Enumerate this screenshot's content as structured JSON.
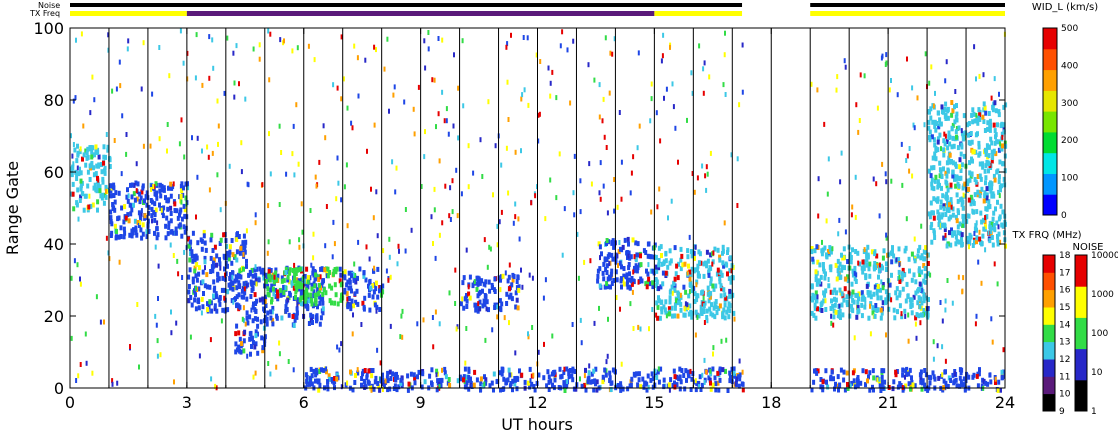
{
  "chart_data": {
    "type": "heatmap",
    "xlabel": "UT hours",
    "ylabel": "Range Gate",
    "xlim": [
      0,
      24
    ],
    "ylim": [
      0,
      100
    ],
    "x_ticks": [
      "0",
      "3",
      "6",
      "9",
      "12",
      "15",
      "18",
      "21",
      "24"
    ],
    "y_ticks": [
      "0",
      "20",
      "40",
      "60",
      "80",
      "100"
    ],
    "top_bars": {
      "noise_label": "Noise",
      "txfreq_label": "TX Freq",
      "noise_segments": [
        {
          "start": 0,
          "end": 17.25,
          "color": "#000000"
        },
        {
          "start": 19.0,
          "end": 24.0,
          "color": "#000000"
        }
      ],
      "txfreq_segments": [
        {
          "start": 0,
          "end": 3.0,
          "color": "#ffff00"
        },
        {
          "start": 3.0,
          "end": 15.0,
          "color": "#5a1a7a"
        },
        {
          "start": 15.0,
          "end": 17.25,
          "color": "#ffff00"
        },
        {
          "start": 19.0,
          "end": 24.0,
          "color": "#ffff00"
        }
      ]
    },
    "scan_lines_ut": [
      1.0,
      2.0,
      3.0,
      4.0,
      5.0,
      6.0,
      7.0,
      8.0,
      9.0,
      10.0,
      11.0,
      12.0,
      13.0,
      14.0,
      15.0,
      16.0,
      17.0,
      18.0,
      19.0,
      20.0,
      21.0,
      22.0,
      23.0
    ],
    "data_gaps_ut": [
      [
        17.25,
        19.0
      ]
    ],
    "scatter_regions": [
      {
        "x0": 0.0,
        "x1": 1.0,
        "y0": 50,
        "y1": 68,
        "color": "#3cc8e6"
      },
      {
        "x0": 1.0,
        "x1": 3.0,
        "y0": 42,
        "y1": 58,
        "color": "#1e46e6"
      },
      {
        "x0": 3.0,
        "x1": 4.5,
        "y0": 22,
        "y1": 44,
        "color": "#1e46e6"
      },
      {
        "x0": 4.2,
        "x1": 5.0,
        "y0": 10,
        "y1": 18,
        "color": "#1e46e6"
      },
      {
        "x0": 4.5,
        "x1": 6.5,
        "y0": 18,
        "y1": 34,
        "color": "#1e46e6"
      },
      {
        "x0": 5.0,
        "x1": 7.0,
        "y0": 24,
        "y1": 34,
        "color": "#32dc46"
      },
      {
        "x0": 7.0,
        "x1": 8.0,
        "y0": 22,
        "y1": 34,
        "color": "#1e46e6"
      },
      {
        "x0": 10.0,
        "x1": 11.5,
        "y0": 22,
        "y1": 32,
        "color": "#1e46e6"
      },
      {
        "x0": 13.5,
        "x1": 15.0,
        "y0": 28,
        "y1": 42,
        "color": "#1e46e6"
      },
      {
        "x0": 15.0,
        "x1": 17.0,
        "y0": 20,
        "y1": 40,
        "color": "#3cc8e6"
      },
      {
        "x0": 19.0,
        "x1": 22.0,
        "y0": 20,
        "y1": 40,
        "color": "#3cc8e6"
      },
      {
        "x0": 22.0,
        "x1": 24.0,
        "y0": 40,
        "y1": 80,
        "color": "#3cc8e6"
      },
      {
        "x0": 6.0,
        "x1": 17.25,
        "y0": 0,
        "y1": 6,
        "color": "#1e46e6"
      },
      {
        "x0": 19.0,
        "x1": 24.0,
        "y0": 0,
        "y1": 6,
        "color": "#1e46e6"
      }
    ],
    "colorbar_velocity_width": {
      "title": "WID_L (km/s)",
      "min": 0,
      "max": 500,
      "ticks": [
        "0",
        "100",
        "200",
        "300",
        "400",
        "500"
      ],
      "colors": [
        "#0000ff",
        "#0096ff",
        "#00e6e6",
        "#00dc32",
        "#78e600",
        "#e6e600",
        "#ffa000",
        "#ff5000",
        "#e60000"
      ]
    },
    "colorbar_txfreq": {
      "title": "TX FRQ (MHz)",
      "ticks": [
        "9",
        "10",
        "11",
        "12",
        "13",
        "14",
        "15",
        "16",
        "17",
        "18"
      ],
      "colors": [
        "#000000",
        "#5a1a7a",
        "#2828c8",
        "#3cc8e6",
        "#32dc46",
        "#ffff00",
        "#ffa000",
        "#ff5000",
        "#e60000"
      ]
    },
    "colorbar_noise": {
      "title": "NOISE",
      "ticks": [
        "1",
        "10",
        "100",
        "1000",
        "10000"
      ],
      "colors": [
        "#000000",
        "#2828c8",
        "#32dc46",
        "#ffff00",
        "#e60000"
      ]
    }
  }
}
